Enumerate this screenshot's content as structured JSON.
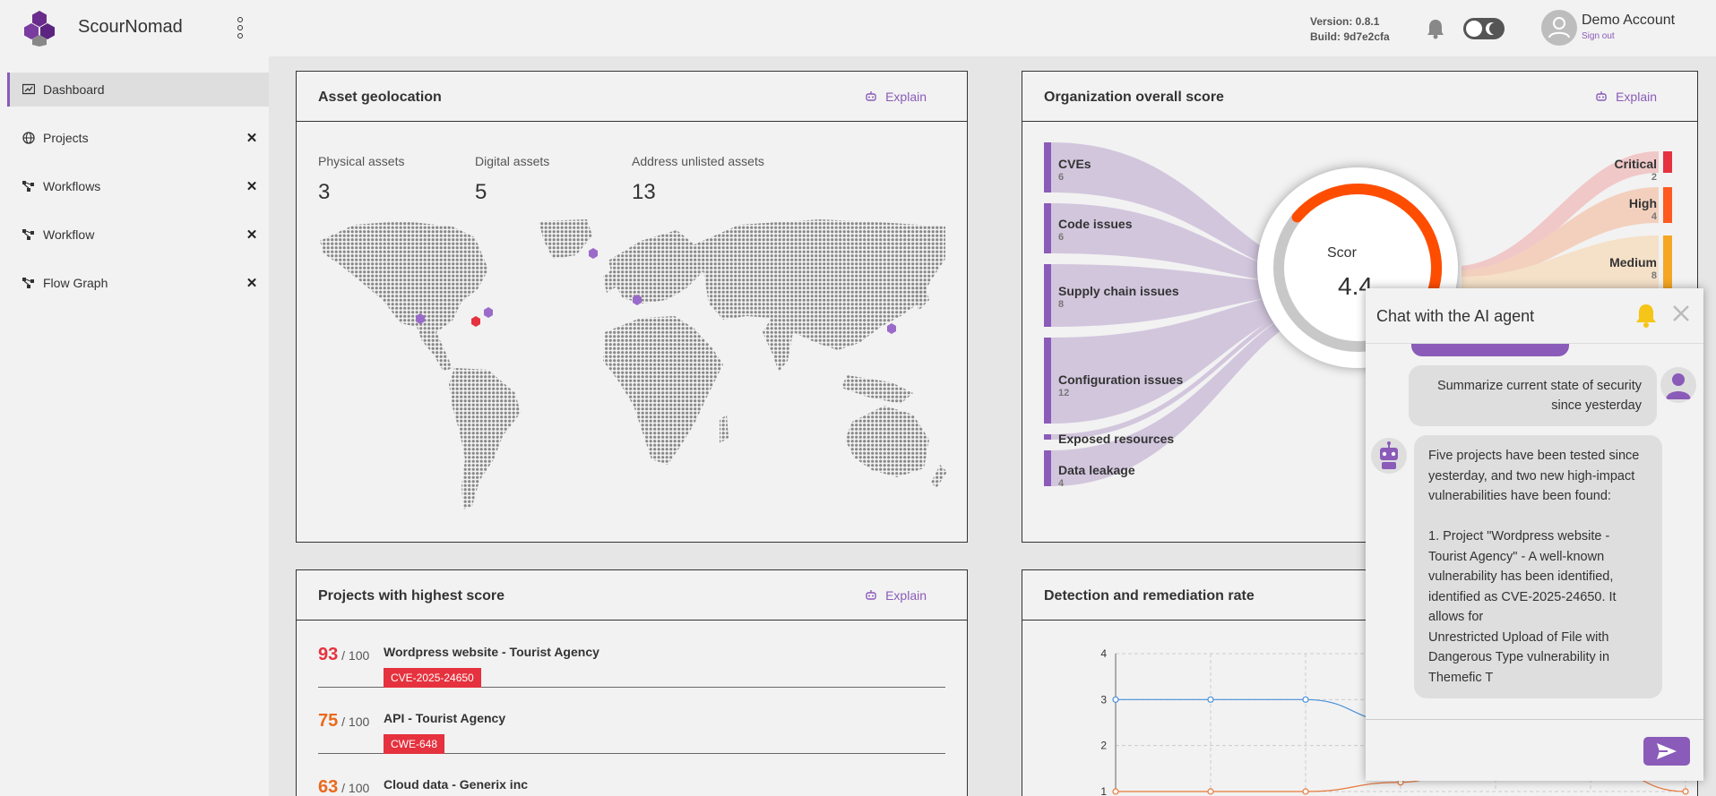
{
  "header": {
    "app_name": "ScourNomad",
    "version": "Version: 0.8.1",
    "build": "Build: 9d7e2cfa",
    "account_name": "Demo Account",
    "sign_out": "Sign out"
  },
  "sidebar": {
    "items": [
      {
        "label": "Dashboard",
        "icon": "dashboard-icon",
        "active": true
      },
      {
        "label": "Projects",
        "icon": "globe-icon",
        "close": "✕"
      },
      {
        "label": "Workflows",
        "icon": "workflow-icon",
        "close": "✕"
      },
      {
        "label": "Workflow",
        "icon": "workflow-icon",
        "close": "✕"
      },
      {
        "label": "Flow Graph",
        "icon": "workflow-icon",
        "close": "✕"
      }
    ]
  },
  "geolocation": {
    "title": "Asset geolocation",
    "explain": "Explain",
    "stats": [
      {
        "label": "Physical assets",
        "value": "3"
      },
      {
        "label": "Digital assets",
        "value": "5"
      },
      {
        "label": "Address unlisted assets",
        "value": "13"
      }
    ]
  },
  "score_panel": {
    "title": "Organization overall score",
    "explain": "Explain",
    "sources": [
      {
        "label": "CVEs",
        "count": "6"
      },
      {
        "label": "Code issues",
        "count": "6"
      },
      {
        "label": "Supply chain issues",
        "count": "8"
      },
      {
        "label": "Configuration issues",
        "count": "12"
      },
      {
        "label": "Exposed resources",
        "count": ""
      },
      {
        "label": "Data leakage",
        "count": "4"
      }
    ],
    "severities": [
      {
        "label": "Critical",
        "count": "2",
        "color": "#e5323e"
      },
      {
        "label": "High",
        "count": "4",
        "color": "#ff5a1f"
      },
      {
        "label": "Medium",
        "count": "8",
        "color": "#f5a623"
      }
    ],
    "gauge_label": "Scor",
    "gauge_value": "4.4",
    "gauge_fraction": 0.44,
    "accent": "#ff4d00"
  },
  "projects_panel": {
    "title": "Projects with highest score",
    "explain": "Explain",
    "items": [
      {
        "score": "93",
        "max": " / 100",
        "name": "Wordpress website - Tourist Agency",
        "badge": "CVE-2025-24650",
        "color": "#e5323e"
      },
      {
        "score": "75",
        "max": " / 100",
        "name": "API - Tourist Agency",
        "badge": "CWE-648",
        "color": "#e96a1d"
      },
      {
        "score": "63",
        "max": " / 100",
        "name": "Cloud data - Generix inc",
        "badge": "",
        "color": "#e96a1d"
      }
    ]
  },
  "detection_panel": {
    "title": "Detection and remediation rate"
  },
  "chart_data": {
    "type": "line",
    "title": "Detection and remediation rate",
    "x": [
      0,
      1,
      2,
      3,
      4,
      5,
      6
    ],
    "ylim": [
      1,
      4
    ],
    "yticks": [
      "1",
      "2",
      "3",
      "4"
    ],
    "series": [
      {
        "values": [
          3,
          3,
          3,
          2.5,
          2.3,
          2.2,
          2.1
        ],
        "color": "#4a90d9"
      },
      {
        "values": [
          1,
          1,
          1,
          1.2,
          1.8,
          1.6,
          1
        ],
        "color": "#e8783a"
      }
    ]
  },
  "chat": {
    "title": "Chat with the AI agent",
    "user_message": "Summarize current state of security since yesterday",
    "bot_message": "Five projects have been tested since yesterday, and two new high-impact vulnerabilities have been found:\n\n1. Project \"Wordpress website - Tourist Agency\" - A well-known vulnerability has been identified, identified as CVE-2025-24650. It allows for\nUnrestricted Upload of File with Dangerous Type vulnerability in Themefic T"
  }
}
